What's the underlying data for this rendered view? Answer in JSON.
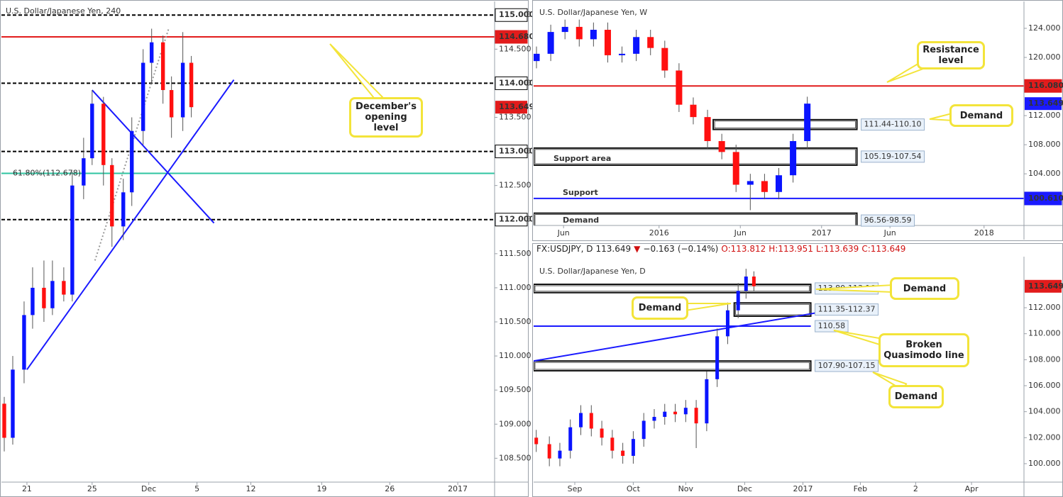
{
  "chart_data": [
    {
      "type": "candlestick",
      "title": "U.S. Dollar/Japanese Yen, 240",
      "up_color": "#0a14ff",
      "down_color": "#ff1010",
      "xlim": [
        0,
        174
      ],
      "ylim": [
        108.15,
        115.2
      ],
      "xticks": [
        {
          "value": 9,
          "label": "21"
        },
        {
          "value": 32,
          "label": "25"
        },
        {
          "value": 52,
          "label": "Dec"
        },
        {
          "value": 69,
          "label": "5"
        },
        {
          "value": 88,
          "label": "12"
        },
        {
          "value": 113,
          "label": "19"
        },
        {
          "value": 137,
          "label": "26"
        },
        {
          "value": 161,
          "label": "2017"
        }
      ],
      "yticks": [
        {
          "value": 115,
          "label": "115.000"
        },
        {
          "value": 114.5,
          "label": "114.500"
        },
        {
          "value": 114,
          "label": "114.000"
        },
        {
          "value": 113.5,
          "label": "113.500"
        },
        {
          "value": 113,
          "label": "113.000"
        },
        {
          "value": 112.5,
          "label": "112.500"
        },
        {
          "value": 112,
          "label": "112.000"
        },
        {
          "value": 111.5,
          "label": "111.500"
        },
        {
          "value": 111,
          "label": "111.000"
        },
        {
          "value": 110.5,
          "label": "110.500"
        },
        {
          "value": 110,
          "label": "110.000"
        },
        {
          "value": 109.5,
          "label": "109.500"
        },
        {
          "value": 109,
          "label": "109.000"
        },
        {
          "value": 108.5,
          "label": "108.500"
        }
      ],
      "x": [
        1,
        4,
        8,
        11,
        15,
        18,
        22,
        25,
        29,
        32,
        36,
        39,
        43,
        46,
        50,
        53,
        57,
        60,
        64,
        67
      ],
      "open": [
        109.3,
        108.8,
        109.8,
        110.6,
        111.0,
        110.7,
        111.1,
        110.9,
        112.5,
        112.9,
        113.7,
        112.8,
        111.9,
        112.4,
        113.3,
        114.3,
        114.6,
        113.9,
        113.5,
        114.3
      ],
      "high": [
        109.4,
        110.0,
        110.8,
        111.3,
        111.4,
        111.4,
        111.3,
        112.7,
        113.2,
        113.9,
        113.8,
        112.9,
        112.6,
        113.5,
        114.5,
        114.8,
        114.7,
        114.1,
        114.75,
        114.4
      ],
      "low": [
        108.6,
        108.7,
        109.6,
        110.4,
        110.5,
        110.6,
        110.8,
        110.8,
        112.3,
        112.8,
        112.5,
        111.6,
        111.7,
        112.2,
        113.1,
        114.0,
        113.7,
        113.2,
        113.3,
        113.5
      ],
      "close": [
        108.8,
        109.8,
        110.6,
        111.0,
        110.7,
        111.1,
        110.9,
        112.5,
        112.9,
        113.7,
        112.8,
        111.9,
        112.4,
        113.3,
        114.3,
        114.6,
        113.9,
        113.5,
        114.3,
        113.649
      ],
      "levels": [
        {
          "price": 115,
          "label": "115.000",
          "color": "#000000",
          "dash": true
        },
        {
          "price": 114.68,
          "label": "114.680",
          "color": "#e21c1c",
          "dash": false
        },
        {
          "price": 114,
          "label": "114.000",
          "color": "#000000",
          "dash": true
        },
        {
          "price": 113,
          "label": "113.000",
          "color": "#000000",
          "dash": true
        },
        {
          "price": 112,
          "label": "112.000",
          "color": "#000000",
          "dash": true
        }
      ],
      "fib": {
        "price": 112.678,
        "label": "61.80%(112.678)",
        "color": "#2ec4a0"
      },
      "last_price": 113.649,
      "last_color": "#e21c1c",
      "trendlines": [
        {
          "x": [
            9,
            82
          ],
          "y": [
            109.8,
            114.05
          ],
          "color": "#1a1aff",
          "style": "solid"
        },
        {
          "x": [
            32,
            75
          ],
          "y": [
            113.9,
            111.95
          ],
          "color": "#1a1aff",
          "style": "solid"
        },
        {
          "x": [
            33,
            59
          ],
          "y": [
            111.4,
            114.8
          ],
          "color": "#999999",
          "style": "dotted"
        }
      ],
      "callouts": [
        "December's opening level"
      ]
    },
    {
      "type": "candlestick",
      "title": "U.S. Dollar/Japanese Yen, W",
      "up_color": "#0a14ff",
      "down_color": "#ff1010",
      "xlim": [
        0,
        172
      ],
      "ylim": [
        96.9,
        127.7
      ],
      "xticks": [
        {
          "value": 10.5,
          "label": "Jun"
        },
        {
          "value": 44,
          "label": "2016"
        },
        {
          "value": 72.5,
          "label": "Jun"
        },
        {
          "value": 101,
          "label": "2017"
        },
        {
          "value": 125,
          "label": "Jun"
        },
        {
          "value": 158,
          "label": "2018"
        }
      ],
      "yticks": [
        {
          "value": 124,
          "label": "124.000"
        },
        {
          "value": 120,
          "label": "120.000"
        },
        {
          "value": 112,
          "label": "112.000"
        },
        {
          "value": 108,
          "label": "108.000"
        },
        {
          "value": 104,
          "label": "104.000"
        }
      ],
      "x": [
        1,
        6,
        11,
        16,
        21,
        26,
        31,
        36,
        41,
        46,
        51,
        56,
        61,
        66,
        71,
        76,
        81,
        86,
        91,
        96
      ],
      "open": [
        119.5,
        120.5,
        123.5,
        124.2,
        122.5,
        123.8,
        120.3,
        120.5,
        122.8,
        121.3,
        118.2,
        113.5,
        111.8,
        108.5,
        107.0,
        102.5,
        103.0,
        101.5,
        103.8,
        108.5
      ],
      "high": [
        121.5,
        124.5,
        125.2,
        125.2,
        124.8,
        124.8,
        121.5,
        123.8,
        123.8,
        122.3,
        119.2,
        114.5,
        112.8,
        109.5,
        108.0,
        104.0,
        104.0,
        104.8,
        109.5,
        114.6
      ],
      "low": [
        118.5,
        119.5,
        122.5,
        121.5,
        121.5,
        119.3,
        119.3,
        119.5,
        120.3,
        117.2,
        112.5,
        110.8,
        107.5,
        106.0,
        101.5,
        99.0,
        100.5,
        100.5,
        102.8,
        107.5
      ],
      "close": [
        120.5,
        123.5,
        124.2,
        122.5,
        123.8,
        120.3,
        120.5,
        122.8,
        121.3,
        118.2,
        113.5,
        111.8,
        108.5,
        107.0,
        102.5,
        103.0,
        101.5,
        103.8,
        108.5,
        113.649
      ],
      "levels": [
        {
          "price": 116.08,
          "label": "116.080",
          "color": "#e21c1c",
          "dash": false
        },
        {
          "price": 100.61,
          "label": "100.610",
          "color": "#1a1aff",
          "dash": false
        }
      ],
      "last_price": 113.649,
      "last_color": "#1a1aff",
      "zones": [
        {
          "low": 110.1,
          "high": 111.44,
          "x_start": 63,
          "x_end": 113.4,
          "label": "111.44-110.10"
        },
        {
          "low": 105.19,
          "high": 107.54,
          "x_start": 0,
          "x_end": 113.4,
          "label": "105.19-107.54"
        },
        {
          "low": 96.56,
          "high": 98.59,
          "x_start": 0,
          "x_end": 113.4,
          "label": "96.56-98.59"
        }
      ],
      "texts": [
        "Support area",
        "Support",
        "Demand"
      ],
      "callouts": [
        "Resistance level",
        "Demand"
      ]
    },
    {
      "type": "candlestick",
      "title": "U.S. Dollar/Japanese Yen, D",
      "quote": {
        "symbol": "FX:USDJPY, D",
        "last": 113.649,
        "direction": "▼",
        "change": {
          "value": -0.163,
          "label": "−0.163"
        },
        "change_pct": {
          "value": -0.14,
          "label": "(−0.14%)"
        },
        "open": {
          "value": 113.812,
          "label": "O:113.812"
        },
        "high": {
          "value": 113.951,
          "label": "H:113.951"
        },
        "low": {
          "value": 113.639,
          "label": "L:113.639"
        },
        "close": {
          "value": 113.649,
          "label": "C:113.649"
        }
      },
      "up_color": "#0a14ff",
      "down_color": "#ff1010",
      "xlim": [
        0,
        187
      ],
      "ylim": [
        98.58,
        115.93
      ],
      "xticks": [
        {
          "value": 15.7,
          "label": "Sep"
        },
        {
          "value": 38,
          "label": "Oct"
        },
        {
          "value": 58,
          "label": "Nov"
        },
        {
          "value": 80.5,
          "label": "Dec"
        },
        {
          "value": 102.7,
          "label": "2017"
        },
        {
          "value": 124.6,
          "label": "Feb"
        },
        {
          "value": 145.7,
          "label": "2"
        },
        {
          "value": 167,
          "label": "Apr"
        }
      ],
      "yticks": [
        {
          "value": 112,
          "label": "112.000"
        },
        {
          "value": 110,
          "label": "110.000"
        },
        {
          "value": 108,
          "label": "108.000"
        },
        {
          "value": 106,
          "label": "106.000"
        },
        {
          "value": 104,
          "label": "104.000"
        },
        {
          "value": 102,
          "label": "102.000"
        },
        {
          "value": 100,
          "label": "100.000"
        }
      ],
      "x": [
        1,
        6,
        10,
        14,
        18,
        22,
        26,
        30,
        34,
        38,
        42,
        46,
        50,
        54,
        58,
        62,
        66,
        70,
        74,
        78,
        81,
        84
      ],
      "open": [
        102.0,
        101.5,
        100.4,
        101.0,
        102.8,
        103.9,
        102.7,
        102.0,
        101.0,
        100.6,
        101.9,
        103.3,
        103.6,
        104.0,
        103.8,
        104.3,
        103.1,
        106.5,
        109.8,
        111.8,
        113.3,
        114.4
      ],
      "high": [
        102.6,
        102.1,
        101.6,
        103.4,
        104.5,
        104.5,
        103.3,
        102.6,
        101.6,
        102.5,
        103.9,
        104.2,
        104.6,
        104.6,
        104.9,
        104.9,
        107.1,
        110.4,
        112.4,
        113.9,
        115.0,
        114.8
      ],
      "low": [
        100.9,
        99.8,
        99.8,
        100.4,
        102.2,
        102.1,
        101.4,
        100.4,
        100.0,
        100.0,
        101.3,
        102.7,
        103.0,
        103.2,
        103.2,
        101.2,
        102.5,
        105.9,
        109.2,
        111.2,
        112.7,
        113.3
      ],
      "close": [
        101.5,
        100.4,
        101.0,
        102.8,
        103.9,
        102.7,
        102.0,
        101.0,
        100.6,
        101.9,
        103.3,
        103.6,
        104.0,
        103.8,
        104.3,
        103.1,
        106.5,
        109.8,
        111.8,
        113.3,
        114.4,
        113.649
      ],
      "levels": [
        {
          "price": 110.58,
          "label": "110.58",
          "color": "#1a1aff",
          "dash": false,
          "x_end": 105.7
        }
      ],
      "last_price": 113.649,
      "last_color": "#e21c1c",
      "zones": [
        {
          "low": 113.16,
          "high": 113.8,
          "x_start": 0,
          "x_end": 105.7,
          "label": "113.80-113.16"
        },
        {
          "low": 111.35,
          "high": 112.37,
          "x_start": 76.5,
          "x_end": 105.7,
          "label": "111.35-112.37"
        },
        {
          "low": 107.15,
          "high": 107.9,
          "x_start": 0,
          "x_end": 105.7,
          "label": "107.90-107.15"
        }
      ],
      "trendlines": [
        {
          "x": [
            0,
            112
          ],
          "y": [
            107.9,
            111.75
          ],
          "color": "#1a1aff",
          "style": "solid"
        }
      ],
      "callouts": [
        "Demand",
        "Demand",
        "Broken Quasimodo line",
        "Demand"
      ]
    }
  ]
}
